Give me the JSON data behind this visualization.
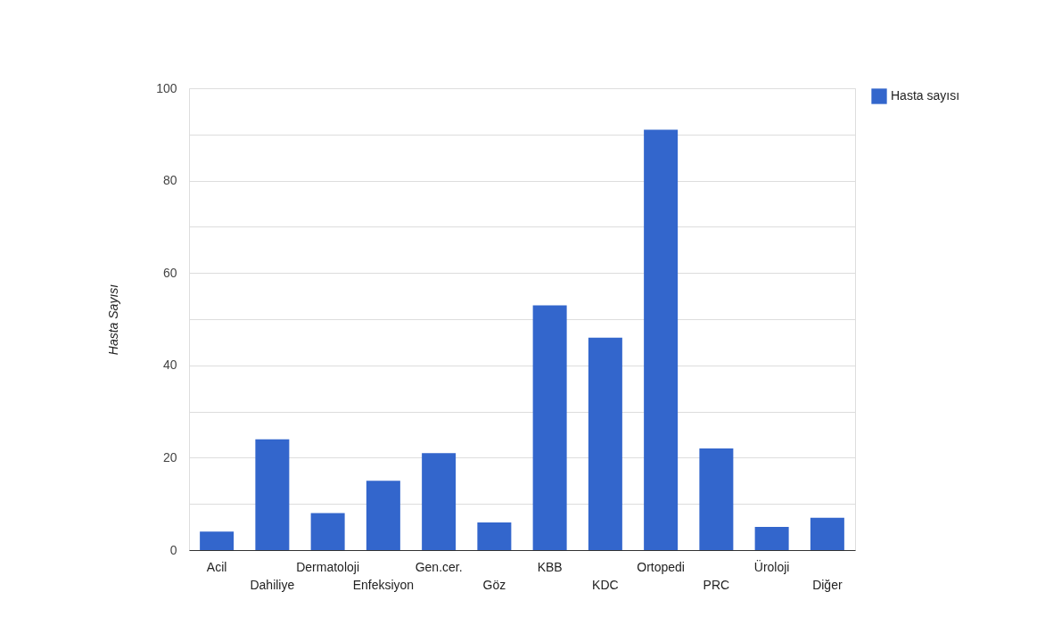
{
  "chart_data": {
    "type": "bar",
    "ylabel": "Hasta Sayısı",
    "categories": [
      "Acil",
      "Dahiliye",
      "Dermatoloji",
      "Enfeksiyon",
      "Gen.cer.",
      "Göz",
      "KBB",
      "KDC",
      "Ortopedi",
      "PRC",
      "Üroloji",
      "Diğer"
    ],
    "series": [
      {
        "name": "Hasta sayısı",
        "color": "#3366cc",
        "values": [
          4,
          24,
          8,
          15,
          21,
          6,
          53,
          46,
          91,
          22,
          5,
          7
        ]
      }
    ],
    "ylim": [
      0,
      100
    ],
    "yticks": [
      0,
      {
        "value": 10,
        "label": null
      },
      20,
      {
        "value": 30,
        "label": null
      },
      40,
      {
        "value": 50,
        "label": null
      },
      60,
      {
        "value": 70,
        "label": null
      },
      80,
      {
        "value": 90,
        "label": null
      },
      100
    ],
    "grid": true,
    "legend": "top right"
  }
}
